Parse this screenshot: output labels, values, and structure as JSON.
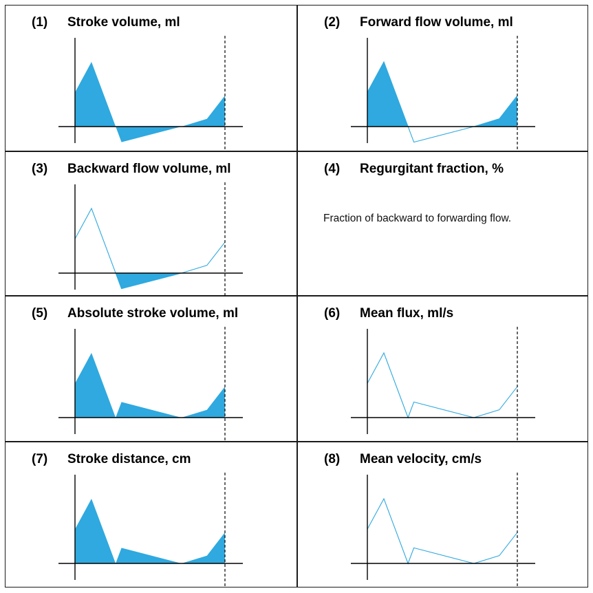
{
  "colors": {
    "fill": "#2fa9df",
    "line": "#2fa9df",
    "axis": "#000000",
    "border": "#1a1a1a"
  },
  "panels": [
    {
      "number": "(1)",
      "title": "Stroke volume, ml",
      "mode": "signed-fill"
    },
    {
      "number": "(2)",
      "title": "Forward flow volume, ml",
      "mode": "positive-fill"
    },
    {
      "number": "(3)",
      "title": "Backward flow volume, ml",
      "mode": "negative-fill"
    },
    {
      "number": "(4)",
      "title": "Regurgitant fraction, %",
      "mode": "text",
      "description": "Fraction of backward to forwarding flow."
    },
    {
      "number": "(5)",
      "title": "Absolute stroke volume, ml",
      "mode": "abs-fill"
    },
    {
      "number": "(6)",
      "title": "Mean flux, ml/s",
      "mode": "abs-line"
    },
    {
      "number": "(7)",
      "title": "Stroke distance, cm",
      "mode": "abs-fill"
    },
    {
      "number": "(8)",
      "title": "Mean velocity, cm/s",
      "mode": "abs-line"
    }
  ],
  "waveform": [
    {
      "t": 0.0,
      "v": 0.53
    },
    {
      "t": 0.11,
      "v": 1.0
    },
    {
      "t": 0.31,
      "v": -0.24
    },
    {
      "t": 0.71,
      "v": 0.0
    },
    {
      "t": 0.88,
      "v": 0.12
    },
    {
      "t": 1.0,
      "v": 0.48
    }
  ]
}
